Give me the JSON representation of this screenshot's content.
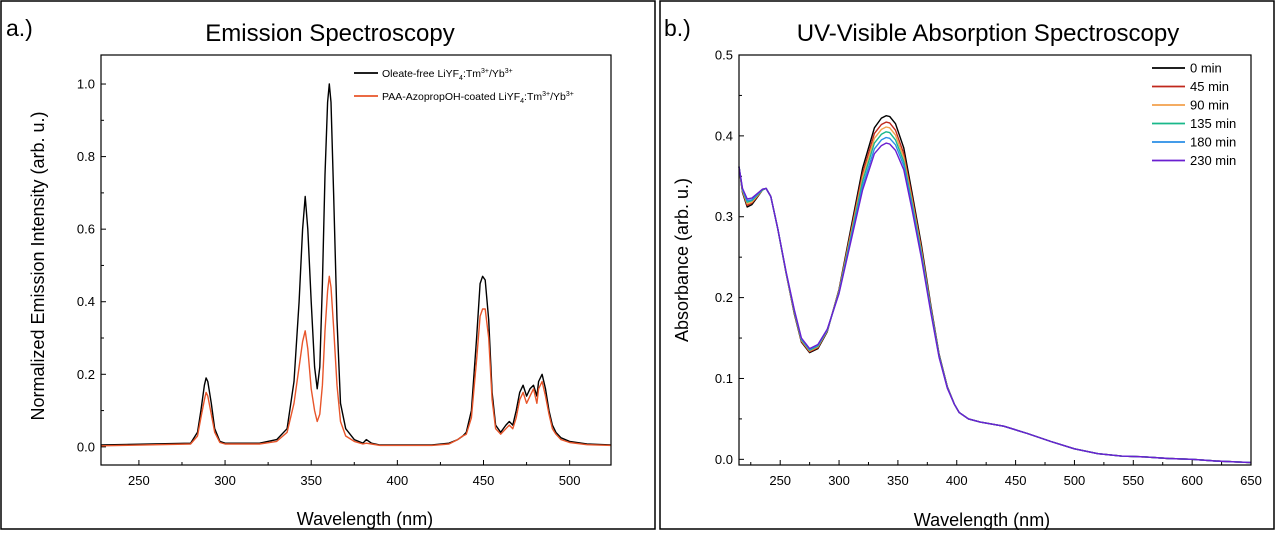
{
  "chart_data": [
    {
      "panel_label": "a.)",
      "type": "line",
      "title": "Emission Spectroscopy",
      "xlabel": "Wavelength (nm)",
      "ylabel": "Normalized Emission Intensity (arb. u.)",
      "xlim": [
        228,
        524
      ],
      "ylim": [
        -0.05,
        1.08
      ],
      "xticks": [
        250,
        300,
        350,
        400,
        450,
        500
      ],
      "yticks": [
        0.0,
        0.2,
        0.4,
        0.6,
        0.8,
        1.0
      ],
      "ytick_labels": [
        "0.0",
        "0.2",
        "0.4",
        "0.6",
        "0.8",
        "1.0"
      ],
      "grid": false,
      "legend_position": "top-right",
      "series": [
        {
          "name": "Oleate-free LiYF4:Tm3+/Yb3+",
          "legend": {
            "pre": "Oleate-free LiYF",
            "sub": "4",
            "mid1": ":Tm",
            "sup1": "3+",
            "mid2": "/Yb",
            "sup2": "3+"
          },
          "color": "#000000",
          "x": [
            228,
            280,
            284,
            286,
            288,
            289,
            290,
            292,
            294,
            297,
            300,
            320,
            330,
            336,
            340,
            343,
            345,
            346.5,
            348,
            350,
            352,
            353.5,
            355,
            356.5,
            358,
            359.5,
            360.5,
            361.5,
            363,
            365,
            367,
            370,
            375,
            380,
            382,
            385,
            390,
            400,
            420,
            430,
            435,
            438,
            440,
            443,
            446,
            448,
            449.5,
            451,
            453,
            455,
            457,
            460,
            463,
            465,
            467,
            469,
            471,
            473,
            475,
            477,
            479,
            481,
            482,
            484,
            486,
            488,
            490,
            492,
            495,
            500,
            510,
            524
          ],
          "y": [
            0.005,
            0.01,
            0.04,
            0.1,
            0.17,
            0.19,
            0.18,
            0.12,
            0.05,
            0.015,
            0.01,
            0.01,
            0.02,
            0.05,
            0.18,
            0.4,
            0.6,
            0.69,
            0.6,
            0.4,
            0.22,
            0.16,
            0.22,
            0.45,
            0.75,
            0.95,
            1.0,
            0.95,
            0.7,
            0.35,
            0.12,
            0.05,
            0.02,
            0.01,
            0.02,
            0.01,
            0.005,
            0.005,
            0.005,
            0.01,
            0.02,
            0.03,
            0.04,
            0.1,
            0.3,
            0.45,
            0.47,
            0.46,
            0.35,
            0.15,
            0.06,
            0.04,
            0.06,
            0.07,
            0.06,
            0.1,
            0.15,
            0.17,
            0.14,
            0.16,
            0.17,
            0.14,
            0.18,
            0.2,
            0.16,
            0.1,
            0.06,
            0.04,
            0.025,
            0.015,
            0.008,
            0.005
          ]
        },
        {
          "name": "PAA-AzopropOH-coated LiYF4:Tm3+/Yb3+",
          "legend": {
            "pre": "PAA-AzopropOH-coated LiYF",
            "sub": "4",
            "mid1": ":Tm",
            "sup1": "3+",
            "mid2": "/Yb",
            "sup2": "3+"
          },
          "color": "#e8552a",
          "x": [
            228,
            280,
            284,
            286,
            288,
            289,
            290,
            292,
            294,
            297,
            300,
            320,
            330,
            336,
            340,
            343,
            345,
            346.5,
            348,
            350,
            352,
            353.5,
            355,
            356.5,
            358,
            359.5,
            360.5,
            361.5,
            363,
            365,
            367,
            370,
            375,
            380,
            382,
            385,
            390,
            400,
            420,
            430,
            435,
            438,
            440,
            443,
            446,
            448,
            449.5,
            451,
            453,
            455,
            457,
            460,
            463,
            465,
            467,
            469,
            471,
            473,
            475,
            477,
            479,
            481,
            482,
            484,
            486,
            488,
            490,
            492,
            495,
            500,
            510,
            524
          ],
          "y": [
            0.003,
            0.008,
            0.03,
            0.08,
            0.13,
            0.15,
            0.14,
            0.09,
            0.04,
            0.012,
            0.008,
            0.008,
            0.015,
            0.04,
            0.12,
            0.22,
            0.29,
            0.32,
            0.27,
            0.16,
            0.1,
            0.07,
            0.09,
            0.17,
            0.32,
            0.43,
            0.47,
            0.44,
            0.33,
            0.17,
            0.07,
            0.03,
            0.015,
            0.008,
            0.01,
            0.008,
            0.004,
            0.004,
            0.004,
            0.008,
            0.02,
            0.03,
            0.035,
            0.08,
            0.24,
            0.36,
            0.38,
            0.38,
            0.3,
            0.13,
            0.05,
            0.035,
            0.05,
            0.06,
            0.05,
            0.08,
            0.13,
            0.15,
            0.12,
            0.14,
            0.16,
            0.12,
            0.16,
            0.18,
            0.14,
            0.09,
            0.05,
            0.035,
            0.02,
            0.012,
            0.006,
            0.004
          ]
        }
      ]
    },
    {
      "panel_label": "b.)",
      "type": "line",
      "title": "UV-Visible Absorption Spectroscopy",
      "xlabel": "Wavelength (nm)",
      "ylabel": "Absorbance (arb. u.)",
      "xlim": [
        215,
        650
      ],
      "ylim": [
        -0.007,
        0.5
      ],
      "xticks": [
        250,
        300,
        350,
        400,
        450,
        500,
        550,
        600,
        650
      ],
      "yticks": [
        0.0,
        0.1,
        0.2,
        0.3,
        0.4,
        0.5
      ],
      "ytick_labels": [
        "0.0",
        "0.1",
        "0.2",
        "0.3",
        "0.4",
        "0.5"
      ],
      "grid": false,
      "legend_position": "top-right",
      "x": [
        215,
        218,
        222,
        226,
        230,
        235,
        238,
        242,
        248,
        255,
        262,
        268,
        275,
        282,
        290,
        300,
        310,
        320,
        330,
        336,
        340,
        343,
        348,
        355,
        362,
        370,
        378,
        385,
        392,
        398,
        402,
        410,
        420,
        440,
        460,
        480,
        500,
        520,
        540,
        560,
        580,
        600,
        620,
        650
      ],
      "series": [
        {
          "name": "0 min",
          "color": "#000000",
          "y": [
            0.362,
            0.33,
            0.312,
            0.315,
            0.323,
            0.333,
            0.335,
            0.325,
            0.285,
            0.23,
            0.18,
            0.145,
            0.132,
            0.137,
            0.158,
            0.21,
            0.285,
            0.36,
            0.41,
            0.422,
            0.425,
            0.424,
            0.415,
            0.385,
            0.33,
            0.265,
            0.19,
            0.13,
            0.09,
            0.068,
            0.058,
            0.05,
            0.046,
            0.041,
            0.032,
            0.022,
            0.013,
            0.007,
            0.004,
            0.003,
            0.001,
            0.0,
            -0.002,
            -0.004
          ]
        },
        {
          "name": "45 min",
          "color": "#c0281c",
          "y": [
            0.362,
            0.331,
            0.314,
            0.317,
            0.324,
            0.333,
            0.335,
            0.325,
            0.285,
            0.23,
            0.181,
            0.146,
            0.133,
            0.138,
            0.159,
            0.209,
            0.281,
            0.354,
            0.403,
            0.414,
            0.417,
            0.416,
            0.407,
            0.378,
            0.325,
            0.261,
            0.188,
            0.129,
            0.09,
            0.068,
            0.058,
            0.05,
            0.046,
            0.041,
            0.032,
            0.022,
            0.013,
            0.007,
            0.004,
            0.003,
            0.001,
            0.0,
            -0.002,
            -0.004
          ]
        },
        {
          "name": "90 min",
          "color": "#f2a14c",
          "y": [
            0.362,
            0.332,
            0.316,
            0.318,
            0.325,
            0.333,
            0.335,
            0.325,
            0.285,
            0.23,
            0.182,
            0.147,
            0.134,
            0.139,
            0.159,
            0.208,
            0.278,
            0.349,
            0.397,
            0.408,
            0.411,
            0.41,
            0.401,
            0.373,
            0.321,
            0.258,
            0.186,
            0.128,
            0.089,
            0.068,
            0.058,
            0.05,
            0.046,
            0.041,
            0.032,
            0.022,
            0.013,
            0.007,
            0.004,
            0.003,
            0.001,
            0.0,
            -0.002,
            -0.004
          ]
        },
        {
          "name": "135 min",
          "color": "#19b88a",
          "y": [
            0.362,
            0.333,
            0.318,
            0.32,
            0.326,
            0.333,
            0.335,
            0.325,
            0.285,
            0.231,
            0.183,
            0.148,
            0.135,
            0.14,
            0.16,
            0.207,
            0.275,
            0.344,
            0.391,
            0.402,
            0.405,
            0.404,
            0.395,
            0.368,
            0.317,
            0.255,
            0.185,
            0.128,
            0.089,
            0.068,
            0.058,
            0.05,
            0.046,
            0.041,
            0.032,
            0.022,
            0.013,
            0.007,
            0.004,
            0.003,
            0.001,
            0.0,
            -0.002,
            -0.004
          ]
        },
        {
          "name": "180 min",
          "color": "#2a8ee6",
          "y": [
            0.362,
            0.334,
            0.32,
            0.321,
            0.327,
            0.334,
            0.335,
            0.325,
            0.285,
            0.231,
            0.184,
            0.149,
            0.136,
            0.141,
            0.16,
            0.206,
            0.272,
            0.338,
            0.384,
            0.395,
            0.398,
            0.397,
            0.389,
            0.363,
            0.313,
            0.252,
            0.183,
            0.127,
            0.089,
            0.068,
            0.058,
            0.05,
            0.046,
            0.041,
            0.032,
            0.022,
            0.013,
            0.007,
            0.004,
            0.003,
            0.001,
            0.0,
            -0.002,
            -0.004
          ]
        },
        {
          "name": "230 min",
          "color": "#6a1fd0",
          "y": [
            0.362,
            0.335,
            0.322,
            0.323,
            0.328,
            0.334,
            0.335,
            0.325,
            0.285,
            0.232,
            0.185,
            0.15,
            0.137,
            0.142,
            0.161,
            0.205,
            0.269,
            0.333,
            0.378,
            0.388,
            0.391,
            0.39,
            0.382,
            0.358,
            0.309,
            0.249,
            0.181,
            0.126,
            0.088,
            0.068,
            0.058,
            0.05,
            0.046,
            0.041,
            0.032,
            0.022,
            0.013,
            0.007,
            0.004,
            0.003,
            0.001,
            0.0,
            -0.002,
            -0.004
          ]
        }
      ]
    }
  ]
}
